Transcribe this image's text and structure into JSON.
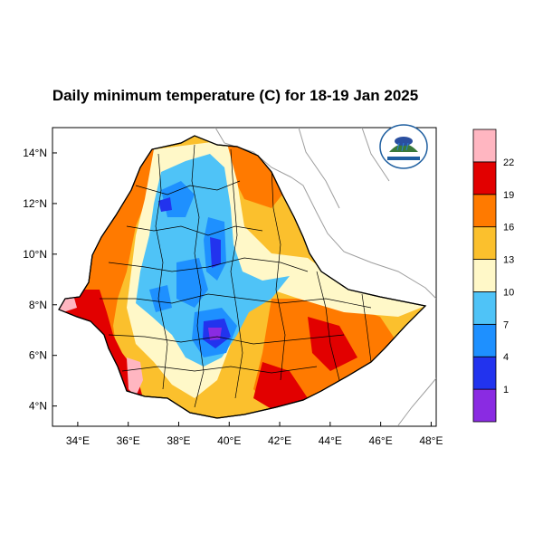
{
  "map": {
    "title": "Daily minimum temperature (C) for 18-19 Jan 2025",
    "x_ticks": [
      "34°E",
      "36°E",
      "38°E",
      "40°E",
      "42°E",
      "44°E",
      "46°E",
      "48°E"
    ],
    "y_ticks": [
      "14°N",
      "12°N",
      "10°N",
      "8°N",
      "6°N",
      "4°N"
    ],
    "x_range_deg": [
      33,
      48.2
    ],
    "y_range_deg": [
      3.2,
      15
    ],
    "colorbar": {
      "labels": [
        "1",
        "4",
        "7",
        "10",
        "13",
        "16",
        "19",
        "22"
      ],
      "colors": [
        "#8a2be2",
        "#2233ee",
        "#1e90ff",
        "#4fc3f7",
        "#fff8c8",
        "#fbc02d",
        "#ff7a00",
        "#e20000",
        "#ffb6c1"
      ]
    },
    "logo_icon": "ethiopian-meteorology-institute-logo"
  }
}
